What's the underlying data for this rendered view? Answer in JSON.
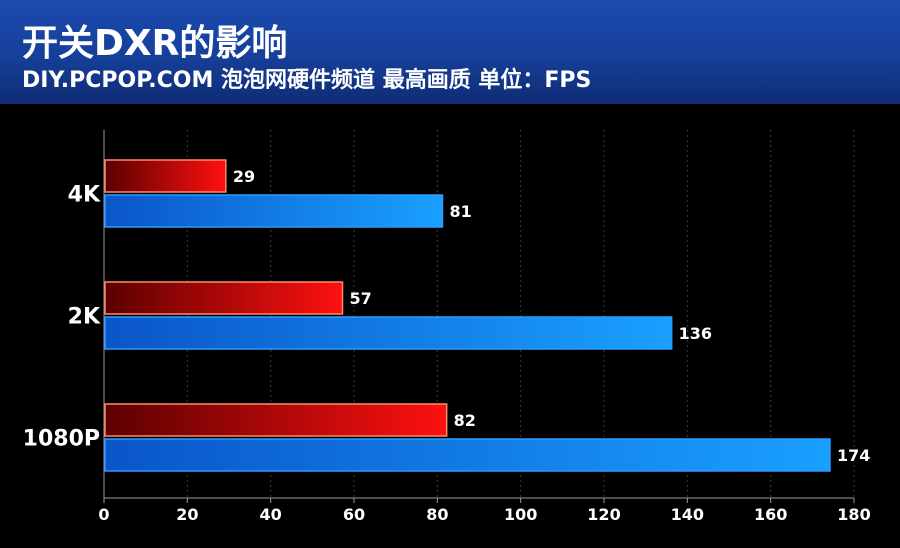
{
  "header": {
    "title": "开关DXR的影响",
    "subtitle": "DIY.PCPOP.COM 泡泡网硬件频道 最高画质 单位：FPS"
  },
  "colors": {
    "header_bg": "#163f99",
    "dxr_on_series": "#e00000",
    "dxr_off_series": "#1a8cff",
    "background": "#000000"
  },
  "chart_data": {
    "type": "bar",
    "orientation": "horizontal",
    "categories": [
      "4K",
      "2K",
      "1080P"
    ],
    "series": [
      {
        "values": [
          29,
          57,
          82
        ],
        "color": "#e00000"
      },
      {
        "values": [
          81,
          136,
          174
        ],
        "color": "#1a8cff"
      }
    ],
    "xlim": [
      0,
      180
    ],
    "x_ticks": [
      0,
      20,
      40,
      60,
      80,
      100,
      120,
      140,
      160,
      180
    ],
    "grid": "vertical-dotted",
    "data_labels": true,
    "title": "",
    "xlabel": "",
    "ylabel": ""
  }
}
